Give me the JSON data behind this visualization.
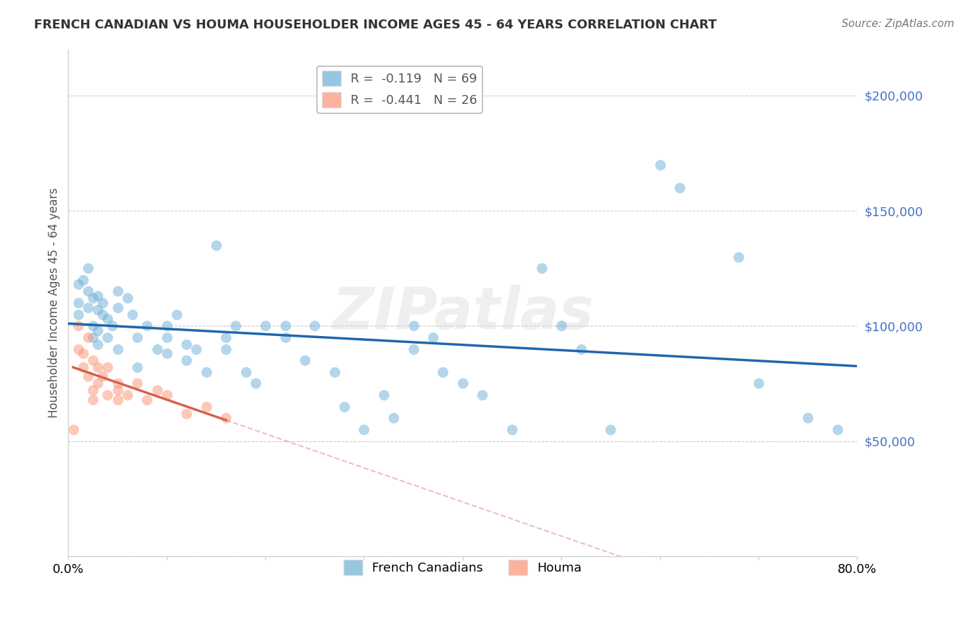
{
  "title": "FRENCH CANADIAN VS HOUMA HOUSEHOLDER INCOME AGES 45 - 64 YEARS CORRELATION CHART",
  "source": "Source: ZipAtlas.com",
  "xlabel": "",
  "ylabel": "Householder Income Ages 45 - 64 years",
  "xlim": [
    0.0,
    0.8
  ],
  "ylim": [
    0,
    220000
  ],
  "yticks": [
    0,
    50000,
    100000,
    150000,
    200000
  ],
  "ytick_labels": [
    "",
    "$50,000",
    "$100,000",
    "$150,000",
    "$200,000"
  ],
  "xticks": [
    0.0,
    0.1,
    0.2,
    0.3,
    0.4,
    0.5,
    0.6,
    0.7,
    0.8
  ],
  "xtick_labels": [
    "0.0%",
    "",
    "",
    "",
    "",
    "",
    "",
    "",
    "80.0%"
  ],
  "french_R": -0.119,
  "french_N": 69,
  "houma_R": -0.441,
  "houma_N": 26,
  "blue_color": "#6baed6",
  "pink_color": "#fc9272",
  "blue_line_color": "#2166ac",
  "pink_line_color": "#d6604d",
  "watermark": "ZIPatlas",
  "legend_blue_label": "R =  -0.119   N = 69",
  "legend_pink_label": "R =  -0.441   N = 26",
  "french_x": [
    0.01,
    0.01,
    0.01,
    0.015,
    0.02,
    0.02,
    0.02,
    0.025,
    0.025,
    0.025,
    0.03,
    0.03,
    0.03,
    0.03,
    0.035,
    0.035,
    0.04,
    0.04,
    0.045,
    0.05,
    0.05,
    0.05,
    0.06,
    0.065,
    0.07,
    0.07,
    0.08,
    0.09,
    0.1,
    0.1,
    0.1,
    0.11,
    0.12,
    0.12,
    0.13,
    0.14,
    0.15,
    0.16,
    0.16,
    0.17,
    0.18,
    0.19,
    0.2,
    0.22,
    0.22,
    0.24,
    0.25,
    0.27,
    0.28,
    0.3,
    0.32,
    0.33,
    0.35,
    0.35,
    0.37,
    0.38,
    0.4,
    0.42,
    0.45,
    0.48,
    0.5,
    0.52,
    0.55,
    0.6,
    0.62,
    0.68,
    0.7,
    0.75,
    0.78
  ],
  "french_y": [
    110000,
    105000,
    118000,
    120000,
    115000,
    108000,
    125000,
    112000,
    100000,
    95000,
    113000,
    107000,
    98000,
    92000,
    110000,
    105000,
    103000,
    95000,
    100000,
    115000,
    108000,
    90000,
    112000,
    105000,
    82000,
    95000,
    100000,
    90000,
    100000,
    95000,
    88000,
    105000,
    92000,
    85000,
    90000,
    80000,
    135000,
    95000,
    90000,
    100000,
    80000,
    75000,
    100000,
    100000,
    95000,
    85000,
    100000,
    80000,
    65000,
    55000,
    70000,
    60000,
    100000,
    90000,
    95000,
    80000,
    75000,
    70000,
    55000,
    125000,
    100000,
    90000,
    55000,
    170000,
    160000,
    130000,
    75000,
    60000,
    55000
  ],
  "houma_x": [
    0.005,
    0.01,
    0.01,
    0.015,
    0.015,
    0.02,
    0.02,
    0.025,
    0.025,
    0.025,
    0.03,
    0.03,
    0.035,
    0.04,
    0.04,
    0.05,
    0.05,
    0.05,
    0.06,
    0.07,
    0.08,
    0.09,
    0.1,
    0.12,
    0.14,
    0.16
  ],
  "houma_y": [
    55000,
    90000,
    100000,
    88000,
    82000,
    95000,
    78000,
    85000,
    72000,
    68000,
    82000,
    75000,
    78000,
    82000,
    70000,
    75000,
    68000,
    72000,
    70000,
    75000,
    68000,
    72000,
    70000,
    62000,
    65000,
    60000
  ]
}
